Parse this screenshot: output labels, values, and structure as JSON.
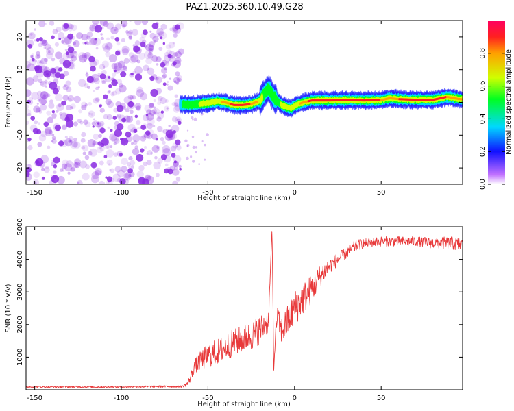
{
  "title": "PAZ1.2025.360.10.49.G28",
  "colors": {
    "noise": "#8a2be2",
    "snr_line": "#e8393a",
    "axis": "#000000"
  },
  "chart_data": [
    {
      "type": "heatmap",
      "name": "spectrogram",
      "xlabel": "Height of straight line (km)",
      "ylabel": "Frequency (Hz)",
      "xlim": [
        -155,
        97
      ],
      "ylim": [
        -25,
        25
      ],
      "xticks": [
        -150,
        -100,
        -50,
        0,
        50
      ],
      "yticks": [
        -20,
        -10,
        0,
        10,
        20
      ],
      "noise_region": {
        "x_from": -155,
        "x_to": -65,
        "freq_from": -25,
        "freq_to": 25,
        "amplitude": 0.1
      },
      "ridge": {
        "x": [
          -66,
          -60,
          -55,
          -50,
          -45,
          -40,
          -35,
          -30,
          -25,
          -20,
          -17,
          -15,
          -12,
          -8,
          -5,
          -2,
          0,
          5,
          10,
          20,
          30,
          40,
          50,
          55,
          60,
          70,
          80,
          88,
          93,
          97
        ],
        "freq": [
          -0.5,
          -0.8,
          -0.5,
          -0.2,
          0.3,
          0.0,
          -0.8,
          -0.8,
          -0.5,
          0.5,
          3.0,
          4.2,
          1.5,
          -0.5,
          -1.5,
          -1.8,
          -1.0,
          0.0,
          0.6,
          0.6,
          0.7,
          0.6,
          0.7,
          1.3,
          1.0,
          0.8,
          0.8,
          1.7,
          1.2,
          0.9
        ],
        "amplitude": [
          0.35,
          0.5,
          0.55,
          0.6,
          0.6,
          0.7,
          0.9,
          0.9,
          0.8,
          0.6,
          0.5,
          0.5,
          0.5,
          0.55,
          0.6,
          0.6,
          0.6,
          0.7,
          0.9,
          0.9,
          0.9,
          0.9,
          0.8,
          0.8,
          0.8,
          0.9,
          0.9,
          0.8,
          0.8,
          0.7
        ]
      },
      "colorbar": {
        "label": "Normalized spectral amplitude",
        "range": [
          0,
          1
        ],
        "ticks": [
          "0.0",
          "0.2",
          "0.4",
          "0.6",
          "0.8"
        ]
      }
    },
    {
      "type": "line",
      "name": "snr",
      "xlabel": "Height of straight line (km)",
      "ylabel": "SNR (10 * v/v)",
      "xlim": [
        -155,
        97
      ],
      "ylim": [
        0,
        5000
      ],
      "xticks": [
        -150,
        -100,
        -50,
        0,
        50
      ],
      "yticks": [
        1000,
        2000,
        3000,
        4000,
        5000
      ],
      "series": [
        {
          "name": "SNR",
          "x": [
            -155,
            -130,
            -100,
            -80,
            -65,
            -62,
            -60,
            -58,
            -55,
            -50,
            -45,
            -40,
            -35,
            -30,
            -25,
            -20,
            -17,
            -15,
            -14,
            -13,
            -12,
            -11,
            -10,
            -8,
            -5,
            0,
            5,
            10,
            15,
            20,
            25,
            30,
            35,
            40,
            50,
            60,
            70,
            80,
            90,
            97
          ],
          "y": [
            90,
            90,
            90,
            100,
            100,
            180,
            380,
            700,
            850,
            1050,
            1150,
            1300,
            1450,
            1550,
            1650,
            1850,
            2000,
            2150,
            3600,
            5000,
            600,
            1700,
            2300,
            1800,
            2000,
            2500,
            2800,
            3100,
            3500,
            3800,
            4000,
            4200,
            4400,
            4500,
            4550,
            4550,
            4550,
            4500,
            4500,
            4450
          ],
          "noise_amplitude": [
            30,
            30,
            30,
            30,
            30,
            60,
            150,
            200,
            280,
            380,
            400,
            420,
            420,
            420,
            450,
            450,
            400,
            400,
            0,
            0,
            0,
            200,
            350,
            400,
            500,
            550,
            500,
            450,
            350,
            250,
            200,
            180,
            180,
            150,
            150,
            150,
            150,
            170,
            200,
            220
          ]
        }
      ]
    }
  ]
}
